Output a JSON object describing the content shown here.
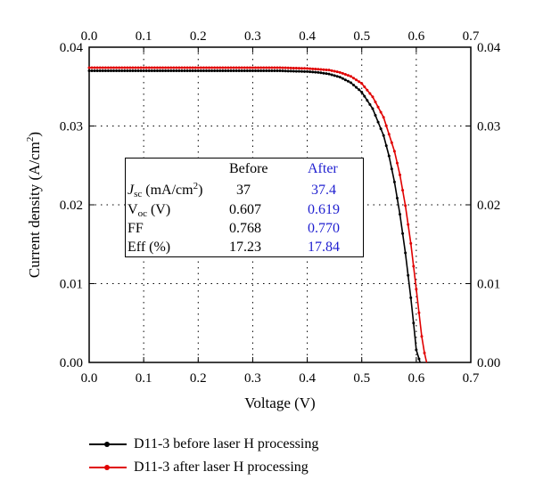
{
  "chart_data": {
    "type": "line",
    "xlabel": "Voltage (V)",
    "ylabel": "Current density (A/cm",
    "ylabel_sup": "2",
    "ylabel_end": ")",
    "xlim": [
      0.0,
      0.7
    ],
    "ylim": [
      0.0,
      0.04
    ],
    "x_ticks": [
      "0.0",
      "0.1",
      "0.2",
      "0.3",
      "0.4",
      "0.5",
      "0.6",
      "0.7"
    ],
    "y_ticks": [
      "0.00",
      "0.01",
      "0.02",
      "0.03",
      "0.04"
    ],
    "grid": "dotted",
    "legend_position": "bottom",
    "series": [
      {
        "name": "D11-3 before laser H processing",
        "color": "#000000",
        "marker": "circle",
        "x": [
          0.0,
          0.05,
          0.1,
          0.15,
          0.2,
          0.25,
          0.3,
          0.35,
          0.4,
          0.42,
          0.44,
          0.46,
          0.48,
          0.5,
          0.52,
          0.54,
          0.55,
          0.56,
          0.57,
          0.58,
          0.59,
          0.595,
          0.6,
          0.607
        ],
        "y": [
          0.037,
          0.037,
          0.037,
          0.037,
          0.037,
          0.037,
          0.037,
          0.037,
          0.0369,
          0.0368,
          0.0366,
          0.0362,
          0.0355,
          0.0343,
          0.0322,
          0.0288,
          0.0262,
          0.0229,
          0.0188,
          0.0139,
          0.0082,
          0.005,
          0.0016,
          0.0
        ]
      },
      {
        "name": "D11-3 after laser H processing",
        "color": "#e00000",
        "marker": "circle",
        "x": [
          0.0,
          0.05,
          0.1,
          0.15,
          0.2,
          0.25,
          0.3,
          0.35,
          0.4,
          0.42,
          0.44,
          0.46,
          0.48,
          0.5,
          0.52,
          0.54,
          0.56,
          0.57,
          0.58,
          0.59,
          0.6,
          0.61,
          0.615,
          0.619
        ],
        "y": [
          0.0374,
          0.0374,
          0.0374,
          0.0374,
          0.0374,
          0.0374,
          0.0374,
          0.0374,
          0.0373,
          0.0372,
          0.0371,
          0.0368,
          0.0363,
          0.0354,
          0.0337,
          0.0311,
          0.0268,
          0.0238,
          0.0199,
          0.0151,
          0.0093,
          0.0033,
          0.0012,
          0.0
        ]
      }
    ],
    "table": {
      "headers": [
        "",
        "Before",
        "After"
      ],
      "rows": [
        {
          "label_main": "J",
          "label_sub": "sc",
          "label_rest": " (mA/cm",
          "label_sup": "2",
          "label_end": ")",
          "before": "37",
          "after": "37.4"
        },
        {
          "label_main": "V",
          "label_sub": "oc",
          "label_rest": " (V)",
          "label_sup": "",
          "label_end": "",
          "before": "0.607",
          "after": "0.619"
        },
        {
          "label_main": "FF",
          "label_sub": "",
          "label_rest": "",
          "label_sup": "",
          "label_end": "",
          "before": "0.768",
          "after": "0.770"
        },
        {
          "label_main": "Eff (%)",
          "label_sub": "",
          "label_rest": "",
          "label_sup": "",
          "label_end": "",
          "before": "17.23",
          "after": "17.84"
        }
      ]
    }
  }
}
